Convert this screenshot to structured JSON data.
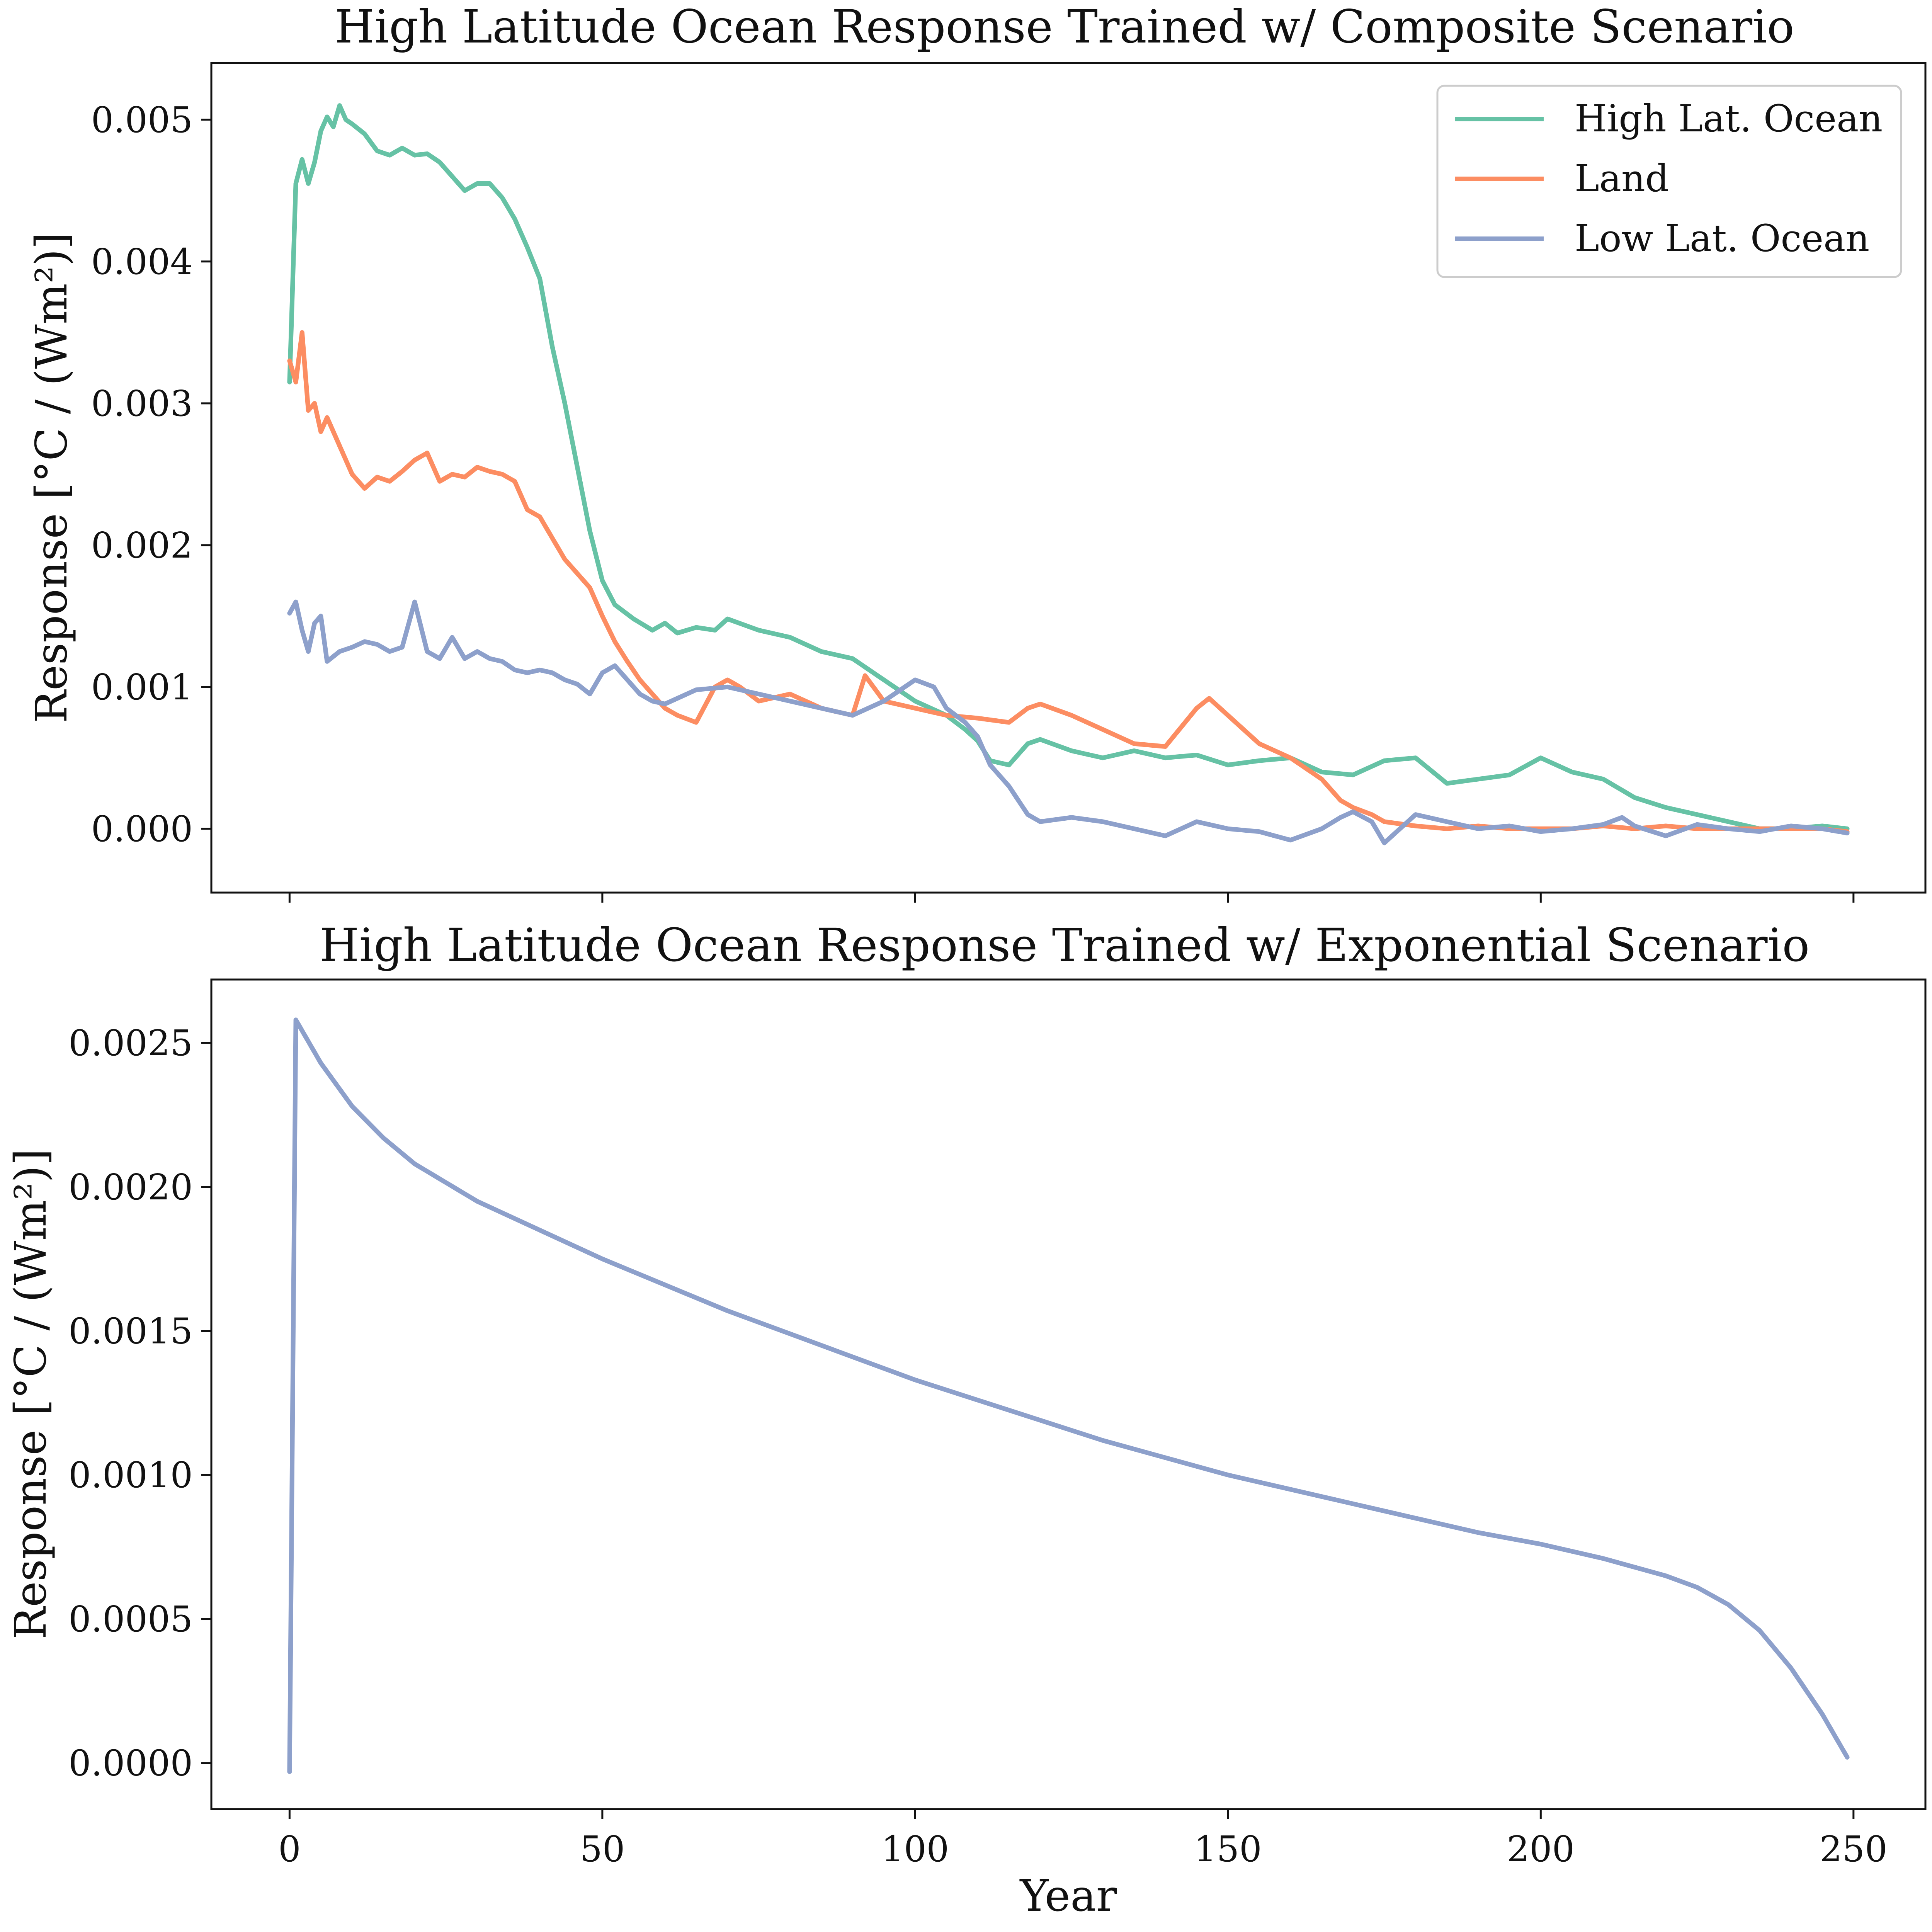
{
  "chart_data": [
    {
      "type": "line",
      "title": "High Latitude Ocean Response Trained w/ Composite Scenario",
      "xlabel": "",
      "ylabel": "Response [°C / (Wm²)]",
      "xlim": [
        -12.5,
        261.5
      ],
      "ylim": [
        -0.00045,
        0.0054
      ],
      "xticks": [
        0,
        50,
        100,
        150,
        200,
        250
      ],
      "xtick_labels": [
        "",
        "",
        "",
        "",
        "",
        ""
      ],
      "yticks": [
        0.0,
        0.001,
        0.002,
        0.003,
        0.004,
        0.005
      ],
      "ytick_labels": [
        "0.000",
        "0.001",
        "0.002",
        "0.003",
        "0.004",
        "0.005"
      ],
      "legend_position": "top-right",
      "grid": false,
      "series": [
        {
          "name": "High Lat. Ocean",
          "color": "#66c2a5",
          "x": [
            0,
            1,
            2,
            3,
            4,
            5,
            6,
            7,
            8,
            9,
            10,
            12,
            14,
            16,
            18,
            20,
            22,
            24,
            26,
            28,
            30,
            32,
            34,
            36,
            38,
            40,
            42,
            44,
            46,
            48,
            50,
            52,
            55,
            58,
            60,
            62,
            65,
            68,
            70,
            75,
            80,
            85,
            90,
            95,
            100,
            105,
            108,
            110,
            112,
            115,
            118,
            120,
            125,
            130,
            135,
            140,
            145,
            150,
            155,
            160,
            165,
            170,
            175,
            180,
            185,
            190,
            195,
            200,
            205,
            210,
            215,
            220,
            225,
            230,
            235,
            240,
            245,
            249
          ],
          "y": [
            0.00315,
            0.00455,
            0.00472,
            0.00455,
            0.0047,
            0.00492,
            0.00502,
            0.00495,
            0.0051,
            0.005,
            0.00497,
            0.0049,
            0.00478,
            0.00475,
            0.0048,
            0.00475,
            0.00476,
            0.0047,
            0.0046,
            0.0045,
            0.00455,
            0.00455,
            0.00445,
            0.0043,
            0.0041,
            0.00388,
            0.0034,
            0.003,
            0.00255,
            0.0021,
            0.00175,
            0.00158,
            0.00148,
            0.0014,
            0.00145,
            0.00138,
            0.00142,
            0.0014,
            0.00148,
            0.0014,
            0.00135,
            0.00125,
            0.0012,
            0.00105,
            0.0009,
            0.0008,
            0.0007,
            0.00062,
            0.00048,
            0.00045,
            0.0006,
            0.00063,
            0.00055,
            0.0005,
            0.00055,
            0.0005,
            0.00052,
            0.00045,
            0.00048,
            0.0005,
            0.0004,
            0.00038,
            0.00048,
            0.0005,
            0.00032,
            0.00035,
            0.00038,
            0.0005,
            0.0004,
            0.00035,
            0.00022,
            0.00015,
            0.0001,
            5e-05,
            0.0,
            0.0,
            2e-05,
            0.0
          ]
        },
        {
          "name": "Land",
          "color": "#fc8d62",
          "x": [
            0,
            1,
            2,
            3,
            4,
            5,
            6,
            8,
            10,
            12,
            14,
            16,
            18,
            20,
            22,
            24,
            26,
            28,
            30,
            32,
            34,
            36,
            38,
            40,
            42,
            44,
            46,
            48,
            50,
            52,
            54,
            56,
            58,
            60,
            62,
            65,
            68,
            70,
            72,
            75,
            80,
            85,
            90,
            92,
            95,
            100,
            105,
            110,
            115,
            118,
            120,
            125,
            130,
            135,
            140,
            145,
            147,
            150,
            155,
            160,
            165,
            168,
            170,
            173,
            175,
            180,
            185,
            190,
            195,
            200,
            205,
            210,
            215,
            220,
            225,
            230,
            235,
            240,
            245,
            249
          ],
          "y": [
            0.0033,
            0.00315,
            0.0035,
            0.00295,
            0.003,
            0.0028,
            0.0029,
            0.0027,
            0.0025,
            0.0024,
            0.00248,
            0.00245,
            0.00252,
            0.0026,
            0.00265,
            0.00245,
            0.0025,
            0.00248,
            0.00255,
            0.00252,
            0.0025,
            0.00245,
            0.00225,
            0.0022,
            0.00205,
            0.0019,
            0.0018,
            0.0017,
            0.0015,
            0.00132,
            0.00118,
            0.00105,
            0.00095,
            0.00085,
            0.0008,
            0.00075,
            0.001,
            0.00105,
            0.001,
            0.0009,
            0.00095,
            0.00085,
            0.0008,
            0.00108,
            0.0009,
            0.00085,
            0.0008,
            0.00078,
            0.00075,
            0.00085,
            0.00088,
            0.0008,
            0.0007,
            0.0006,
            0.00058,
            0.00085,
            0.00092,
            0.0008,
            0.0006,
            0.0005,
            0.00035,
            0.0002,
            0.00015,
            0.0001,
            5e-05,
            2e-05,
            0.0,
            2e-05,
            0.0,
            0.0,
            0.0,
            2e-05,
            0.0,
            2e-05,
            0.0,
            0.0,
            0.0,
            0.0,
            0.0,
            -2e-05
          ]
        },
        {
          "name": "Low Lat. Ocean",
          "color": "#8da0cb",
          "x": [
            0,
            1,
            2,
            3,
            4,
            5,
            6,
            8,
            10,
            12,
            14,
            16,
            18,
            20,
            22,
            24,
            26,
            28,
            30,
            32,
            34,
            36,
            38,
            40,
            42,
            44,
            46,
            48,
            50,
            52,
            54,
            56,
            58,
            60,
            65,
            70,
            75,
            80,
            85,
            90,
            95,
            100,
            103,
            105,
            108,
            110,
            112,
            115,
            118,
            120,
            125,
            130,
            135,
            140,
            145,
            150,
            155,
            160,
            165,
            168,
            170,
            173,
            175,
            180,
            185,
            190,
            195,
            200,
            205,
            210,
            213,
            215,
            220,
            225,
            230,
            235,
            240,
            245,
            249
          ],
          "y": [
            0.00152,
            0.0016,
            0.0014,
            0.00125,
            0.00145,
            0.0015,
            0.00118,
            0.00125,
            0.00128,
            0.00132,
            0.0013,
            0.00125,
            0.00128,
            0.0016,
            0.00125,
            0.0012,
            0.00135,
            0.0012,
            0.00125,
            0.0012,
            0.00118,
            0.00112,
            0.0011,
            0.00112,
            0.0011,
            0.00105,
            0.00102,
            0.00095,
            0.0011,
            0.00115,
            0.00105,
            0.00095,
            0.0009,
            0.00088,
            0.00098,
            0.001,
            0.00095,
            0.0009,
            0.00085,
            0.0008,
            0.0009,
            0.00105,
            0.001,
            0.00085,
            0.00075,
            0.00065,
            0.00045,
            0.0003,
            0.0001,
            5e-05,
            8e-05,
            5e-05,
            0.0,
            -5e-05,
            5e-05,
            0.0,
            -2e-05,
            -8e-05,
            0.0,
            8e-05,
            0.00012,
            5e-05,
            -0.0001,
            0.0001,
            5e-05,
            0.0,
            2e-05,
            -2e-05,
            0.0,
            3e-05,
            8e-05,
            2e-05,
            -5e-05,
            3e-05,
            0.0,
            -2e-05,
            2e-05,
            0.0,
            -3e-05
          ]
        }
      ]
    },
    {
      "type": "line",
      "title": "High Latitude Ocean Response Trained w/ Exponential Scenario",
      "xlabel": "Year",
      "ylabel": "Response [°C / (Wm²)]",
      "xlim": [
        -12.5,
        261.5
      ],
      "ylim": [
        -0.00016,
        0.00272
      ],
      "xticks": [
        0,
        50,
        100,
        150,
        200,
        250
      ],
      "xtick_labels": [
        "0",
        "50",
        "100",
        "150",
        "200",
        "250"
      ],
      "yticks": [
        0.0,
        0.0005,
        0.001,
        0.0015,
        0.002,
        0.0025
      ],
      "ytick_labels": [
        "0.0000",
        "0.0005",
        "0.0010",
        "0.0015",
        "0.0020",
        "0.0025"
      ],
      "grid": false,
      "series": [
        {
          "color": "#8da0cb",
          "x": [
            0,
            1,
            5,
            10,
            15,
            20,
            30,
            40,
            50,
            60,
            70,
            80,
            90,
            100,
            110,
            120,
            130,
            140,
            150,
            160,
            170,
            180,
            190,
            200,
            210,
            220,
            225,
            230,
            235,
            240,
            245,
            249
          ],
          "y": [
            -3e-05,
            0.00258,
            0.00243,
            0.00228,
            0.00217,
            0.00208,
            0.00195,
            0.00185,
            0.00175,
            0.00166,
            0.00157,
            0.00149,
            0.00141,
            0.00133,
            0.00126,
            0.00119,
            0.00112,
            0.00106,
            0.001,
            0.00095,
            0.0009,
            0.00085,
            0.0008,
            0.00076,
            0.00071,
            0.00065,
            0.00061,
            0.00055,
            0.00046,
            0.00033,
            0.00017,
            2e-05
          ]
        }
      ]
    }
  ]
}
